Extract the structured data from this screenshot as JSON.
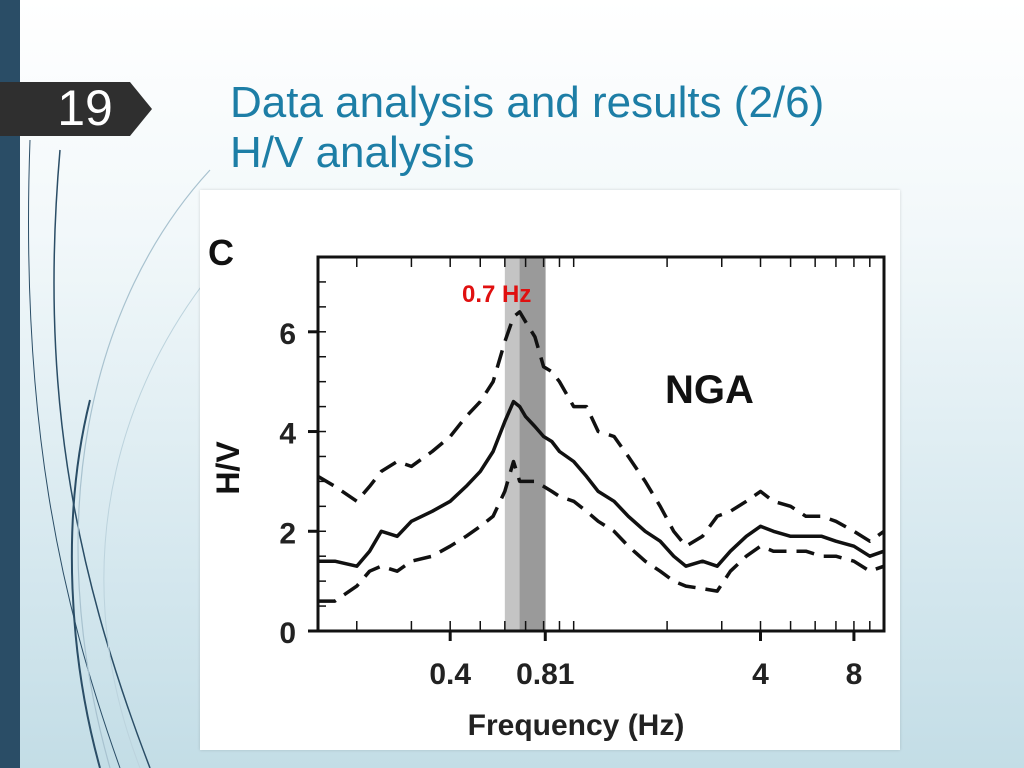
{
  "slide": {
    "number": "19",
    "title_line1": "Data analysis and results (2/6)",
    "title_line2": "H/V analysis",
    "accent_color": "#1d7ea6",
    "sidebar_color": "#2a4d66"
  },
  "chart_data": {
    "type": "line",
    "panel_label": "C",
    "annotation": "NGA",
    "peak_label": "0.7 Hz",
    "peak_label_color": "#e01010",
    "peak_band": [
      0.6,
      0.8
    ],
    "peak_frequency": 0.7,
    "xlabel": "Frequency (Hz)",
    "ylabel": "H/V",
    "xscale": "log",
    "xlim": [
      0.15,
      10
    ],
    "ylim": [
      0,
      7.5
    ],
    "xticks": [
      {
        "value": 0.4,
        "label": "0.4"
      },
      {
        "value": 0.81,
        "label": "0.81"
      },
      {
        "value": 4,
        "label": "4"
      },
      {
        "value": 8,
        "label": "8"
      }
    ],
    "yticks": [
      {
        "value": 0,
        "label": "0"
      },
      {
        "value": 2,
        "label": "2"
      },
      {
        "value": 4,
        "label": "4"
      },
      {
        "value": 6,
        "label": "6"
      }
    ],
    "x": [
      0.15,
      0.17,
      0.2,
      0.22,
      0.24,
      0.27,
      0.3,
      0.35,
      0.4,
      0.45,
      0.5,
      0.55,
      0.6,
      0.64,
      0.67,
      0.7,
      0.75,
      0.8,
      0.85,
      0.9,
      1.0,
      1.1,
      1.2,
      1.35,
      1.5,
      1.7,
      1.9,
      2.1,
      2.3,
      2.6,
      2.9,
      3.2,
      3.6,
      4.0,
      4.4,
      5.0,
      5.6,
      6.3,
      7.0,
      8.0,
      9.0,
      10.0
    ],
    "series": [
      {
        "style": "dashed",
        "values": [
          3.1,
          2.9,
          2.6,
          2.9,
          3.2,
          3.4,
          3.3,
          3.6,
          3.9,
          4.3,
          4.6,
          5.0,
          5.8,
          6.3,
          6.4,
          6.2,
          5.9,
          5.3,
          5.2,
          5.0,
          4.5,
          4.5,
          4.0,
          3.9,
          3.5,
          3.0,
          2.5,
          2.0,
          1.7,
          1.9,
          2.3,
          2.4,
          2.6,
          2.8,
          2.6,
          2.5,
          2.3,
          2.3,
          2.2,
          2.0,
          1.8,
          2.0
        ]
      },
      {
        "style": "solid",
        "values": [
          1.4,
          1.4,
          1.3,
          1.6,
          2.0,
          1.9,
          2.2,
          2.4,
          2.6,
          2.9,
          3.2,
          3.6,
          4.2,
          4.6,
          4.5,
          4.3,
          4.1,
          3.9,
          3.8,
          3.6,
          3.4,
          3.1,
          2.8,
          2.6,
          2.3,
          2.0,
          1.8,
          1.5,
          1.3,
          1.4,
          1.3,
          1.6,
          1.9,
          2.1,
          2.0,
          1.9,
          1.9,
          1.9,
          1.8,
          1.7,
          1.5,
          1.6
        ]
      },
      {
        "style": "dashed",
        "values": [
          0.6,
          0.6,
          0.9,
          1.2,
          1.3,
          1.2,
          1.4,
          1.5,
          1.7,
          1.9,
          2.1,
          2.3,
          2.8,
          3.4,
          3.0,
          3.0,
          3.0,
          2.9,
          2.8,
          2.7,
          2.6,
          2.4,
          2.2,
          2.0,
          1.7,
          1.4,
          1.2,
          1.0,
          0.9,
          0.85,
          0.8,
          1.2,
          1.5,
          1.7,
          1.6,
          1.6,
          1.6,
          1.5,
          1.5,
          1.4,
          1.2,
          1.3
        ]
      }
    ]
  }
}
